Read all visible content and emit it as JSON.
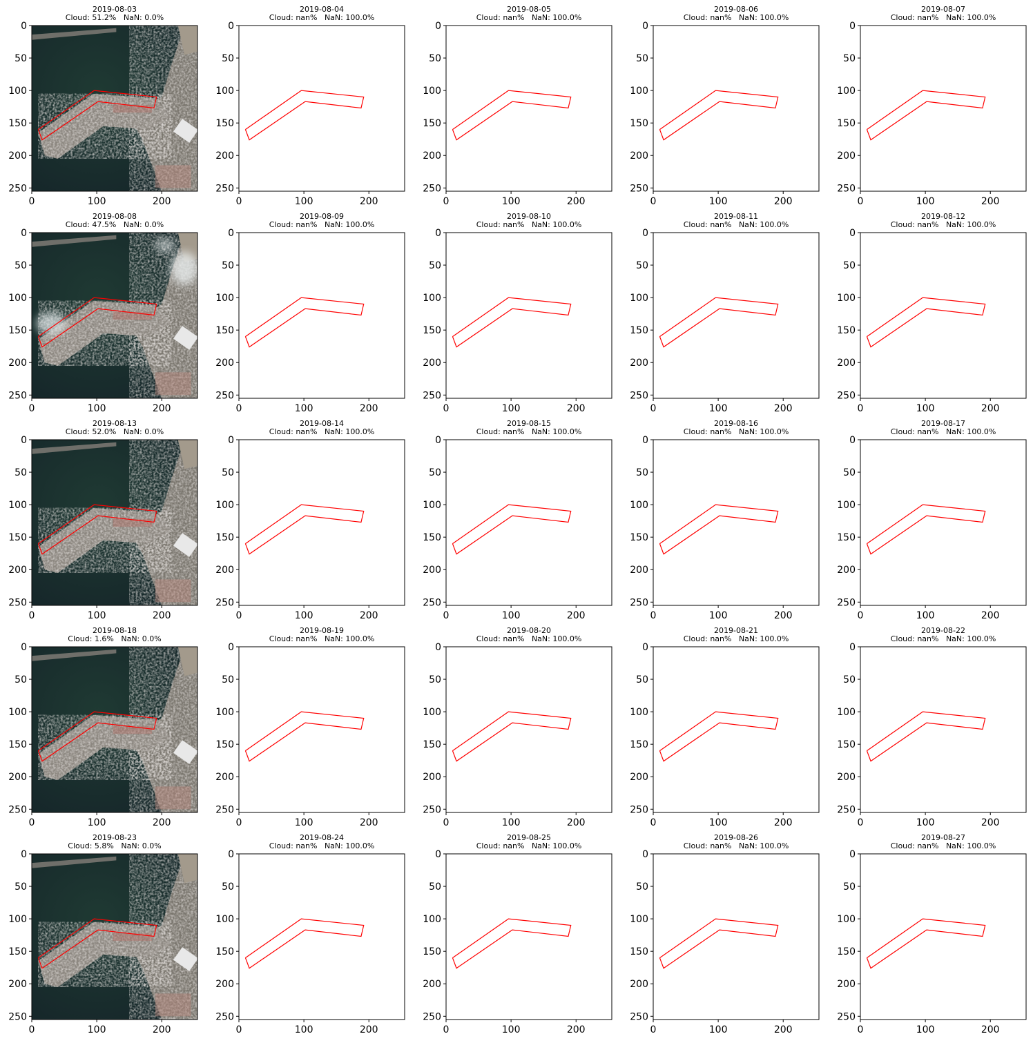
{
  "chart_data": {
    "type": "image-grid",
    "rows": 5,
    "cols": 5,
    "image_extent": [
      0,
      255
    ],
    "xticks": [
      0,
      100,
      200
    ],
    "yticks": [
      0,
      50,
      100,
      150,
      200,
      250
    ],
    "tick_labels_x": [
      "0",
      "100",
      "200"
    ],
    "tick_labels_y": [
      "0",
      "50",
      "100",
      "150",
      "200",
      "250"
    ],
    "outline_color": "#ff0000",
    "aoi_polygon": [
      [
        10,
        160
      ],
      [
        96,
        100
      ],
      [
        192,
        110
      ],
      [
        188,
        127
      ],
      [
        102,
        117
      ],
      [
        16,
        176
      ],
      [
        10,
        160
      ]
    ],
    "panels": [
      {
        "date": "2019-08-03",
        "stats": "Cloud: 51.2%   NaN: 0.0%",
        "has_image": true
      },
      {
        "date": "2019-08-04",
        "stats": "Cloud: nan%   NaN: 100.0%",
        "has_image": false
      },
      {
        "date": "2019-08-05",
        "stats": "Cloud: nan%   NaN: 100.0%",
        "has_image": false
      },
      {
        "date": "2019-08-06",
        "stats": "Cloud: nan%   NaN: 100.0%",
        "has_image": false
      },
      {
        "date": "2019-08-07",
        "stats": "Cloud: nan%   NaN: 100.0%",
        "has_image": false
      },
      {
        "date": "2019-08-08",
        "stats": "Cloud: 47.5%   NaN: 0.0%",
        "has_image": true,
        "clouds": true
      },
      {
        "date": "2019-08-09",
        "stats": "Cloud: nan%   NaN: 100.0%",
        "has_image": false
      },
      {
        "date": "2019-08-10",
        "stats": "Cloud: nan%   NaN: 100.0%",
        "has_image": false
      },
      {
        "date": "2019-08-11",
        "stats": "Cloud: nan%   NaN: 100.0%",
        "has_image": false
      },
      {
        "date": "2019-08-12",
        "stats": "Cloud: nan%   NaN: 100.0%",
        "has_image": false
      },
      {
        "date": "2019-08-13",
        "stats": "Cloud: 52.0%   NaN: 0.0%",
        "has_image": true
      },
      {
        "date": "2019-08-14",
        "stats": "Cloud: nan%   NaN: 100.0%",
        "has_image": false
      },
      {
        "date": "2019-08-15",
        "stats": "Cloud: nan%   NaN: 100.0%",
        "has_image": false
      },
      {
        "date": "2019-08-16",
        "stats": "Cloud: nan%   NaN: 100.0%",
        "has_image": false
      },
      {
        "date": "2019-08-17",
        "stats": "Cloud: nan%   NaN: 100.0%",
        "has_image": false
      },
      {
        "date": "2019-08-18",
        "stats": "Cloud: 1.6%   NaN: 0.0%",
        "has_image": true
      },
      {
        "date": "2019-08-19",
        "stats": "Cloud: nan%   NaN: 100.0%",
        "has_image": false
      },
      {
        "date": "2019-08-20",
        "stats": "Cloud: nan%   NaN: 100.0%",
        "has_image": false
      },
      {
        "date": "2019-08-21",
        "stats": "Cloud: nan%   NaN: 100.0%",
        "has_image": false
      },
      {
        "date": "2019-08-22",
        "stats": "Cloud: nan%   NaN: 100.0%",
        "has_image": false
      },
      {
        "date": "2019-08-23",
        "stats": "Cloud: 5.8%   NaN: 0.0%",
        "has_image": true
      },
      {
        "date": "2019-08-24",
        "stats": "Cloud: nan%   NaN: 100.0%",
        "has_image": false
      },
      {
        "date": "2019-08-25",
        "stats": "Cloud: nan%   NaN: 100.0%",
        "has_image": false
      },
      {
        "date": "2019-08-26",
        "stats": "Cloud: nan%   NaN: 100.0%",
        "has_image": false
      },
      {
        "date": "2019-08-27",
        "stats": "Cloud: nan%   NaN: 100.0%",
        "has_image": false
      }
    ]
  }
}
